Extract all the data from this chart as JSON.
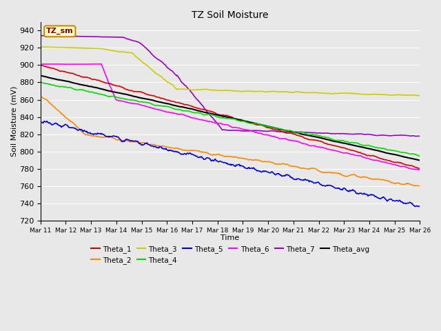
{
  "title": "TZ Soil Moisture",
  "xlabel": "Time",
  "ylabel": "Soil Moisture (mV)",
  "ylim": [
    720,
    950
  ],
  "series": {
    "Theta_1": {
      "color": "#dd0000"
    },
    "Theta_2": {
      "color": "#ff8800"
    },
    "Theta_3": {
      "color": "#cccc00"
    },
    "Theta_4": {
      "color": "#00dd00"
    },
    "Theta_5": {
      "color": "#0000ee"
    },
    "Theta_6": {
      "color": "#ff00ff"
    },
    "Theta_7": {
      "color": "#9900cc"
    },
    "Theta_avg": {
      "color": "#000000"
    }
  },
  "x_tick_labels": [
    "Mar 11",
    "Mar 12",
    "Mar 13",
    "Mar 14",
    "Mar 15",
    "Mar 16",
    "Mar 17",
    "Mar 18",
    "Mar 19",
    "Mar 20",
    "Mar 21",
    "Mar 22",
    "Mar 23",
    "Mar 24",
    "Mar 25",
    "Mar 26"
  ],
  "legend_label": "TZ_sm",
  "bg_color": "#e8e8e8",
  "grid_color": "#ffffff"
}
